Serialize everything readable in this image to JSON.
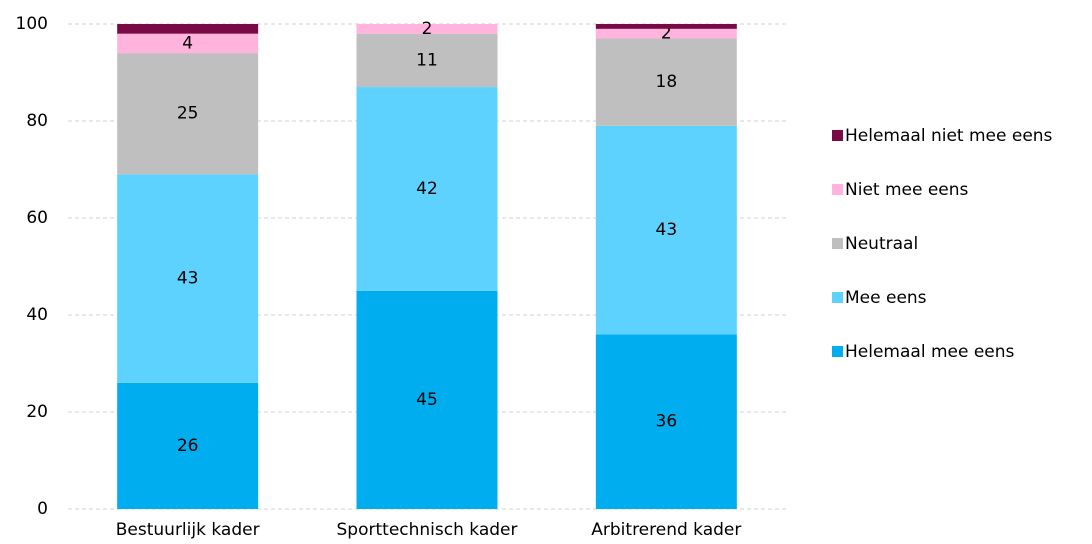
{
  "chart_data": {
    "type": "stacked_bar",
    "categories": [
      "Bestuurlijk kader",
      "Sporttechnisch kader",
      "Arbitrerend kader"
    ],
    "series": [
      {
        "name": "Helemaal mee eens",
        "color": "#00aeef",
        "values": [
          26,
          45,
          36
        ]
      },
      {
        "name": "Mee eens",
        "color": "#5dd2ff",
        "values": [
          43,
          42,
          43
        ]
      },
      {
        "name": "Neutraal",
        "color": "#bfbfbf",
        "values": [
          25,
          11,
          18
        ]
      },
      {
        "name": "Niet mee eens",
        "color": "#ffb3dd",
        "values": [
          4,
          2,
          2
        ]
      },
      {
        "name": "Helemaal niet mee eens",
        "color": "#7a0a45",
        "values": [
          2,
          0,
          1
        ],
        "show_labels": false
      }
    ],
    "ylim": [
      0,
      100
    ],
    "yticks": [
      0,
      20,
      40,
      60,
      80,
      100
    ],
    "grid": true,
    "legend": "right"
  }
}
